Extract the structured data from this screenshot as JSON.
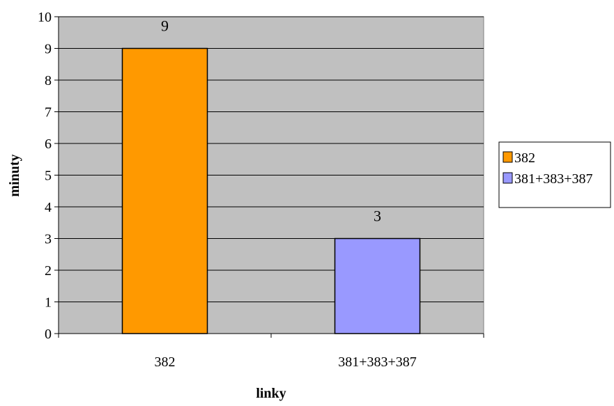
{
  "chart_data": {
    "type": "bar",
    "categories": [
      "382",
      "381+383+387"
    ],
    "series": [
      {
        "name": "382",
        "values": [
          9,
          null
        ],
        "color": "#ff9900"
      },
      {
        "name": "381+383+387",
        "values": [
          null,
          3
        ],
        "color": "#9999ff"
      }
    ],
    "data_labels": [
      "9",
      "3"
    ],
    "title": "",
    "xlabel": "linky",
    "ylabel": "minuty",
    "ylim": [
      0,
      10
    ],
    "yticks": [
      0,
      1,
      2,
      3,
      4,
      5,
      6,
      7,
      8,
      9,
      10
    ],
    "grid": true,
    "plot_background": "#c0c0c0",
    "legend_position": "right"
  }
}
